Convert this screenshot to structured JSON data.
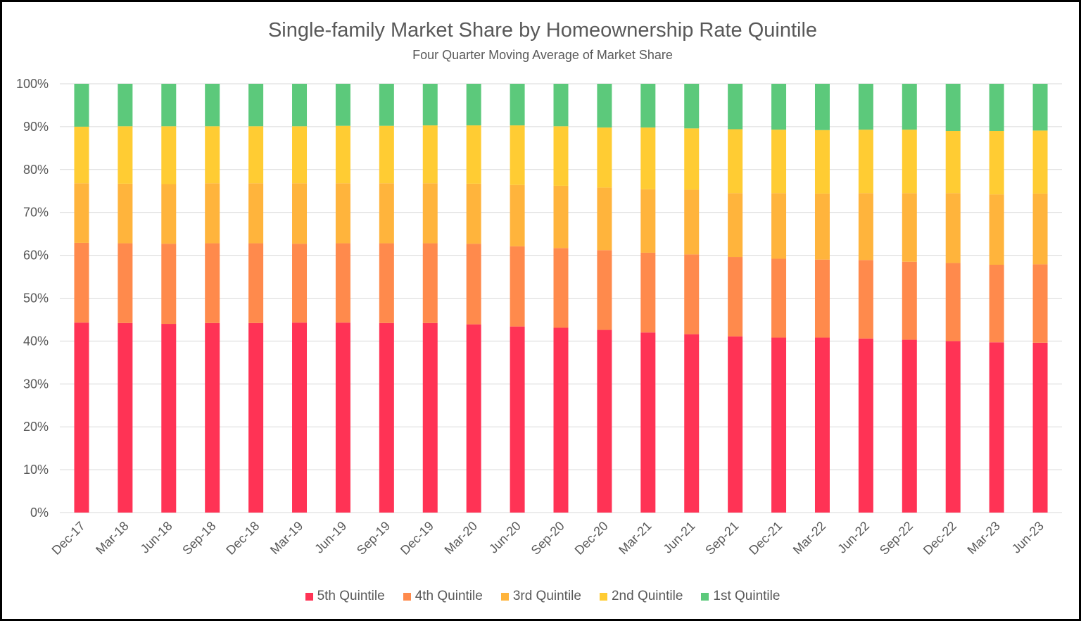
{
  "chart_data": {
    "type": "bar",
    "stacked": true,
    "title": "Single-family Market Share by Homeownership Rate Quintile",
    "subtitle": "Four Quarter Moving Average of Market Share",
    "categories": [
      "Dec-17",
      "Mar-18",
      "Jun-18",
      "Sep-18",
      "Dec-18",
      "Mar-19",
      "Jun-19",
      "Sep-19",
      "Dec-19",
      "Mar-20",
      "Jun-20",
      "Sep-20",
      "Dec-20",
      "Mar-21",
      "Jun-21",
      "Sep-21",
      "Dec-21",
      "Mar-22",
      "Jun-22",
      "Sep-22",
      "Dec-22",
      "Mar-23",
      "Jun-23"
    ],
    "yticks": [
      "0%",
      "10%",
      "20%",
      "30%",
      "40%",
      "50%",
      "60%",
      "70%",
      "80%",
      "90%",
      "100%"
    ],
    "ylim": [
      0,
      100
    ],
    "grid": true,
    "legend_position": "bottom",
    "series": [
      {
        "name": "5th Quintile",
        "color": "#ff3355",
        "values": [
          44.3,
          44.2,
          44.0,
          44.2,
          44.2,
          44.3,
          44.3,
          44.2,
          44.2,
          43.9,
          43.4,
          43.1,
          42.6,
          42.0,
          41.6,
          41.1,
          40.8,
          40.8,
          40.6,
          40.3,
          40.0,
          39.7,
          39.6
        ]
      },
      {
        "name": "4th Quintile",
        "color": "#ff8a4c",
        "values": [
          18.6,
          18.6,
          18.7,
          18.6,
          18.6,
          18.4,
          18.5,
          18.6,
          18.6,
          18.8,
          18.7,
          18.6,
          18.6,
          18.6,
          18.6,
          18.5,
          18.4,
          18.2,
          18.3,
          18.2,
          18.2,
          18.1,
          18.3
        ]
      },
      {
        "name": "3rd Quintile",
        "color": "#ffb43c",
        "values": [
          13.9,
          13.9,
          13.9,
          14.0,
          14.0,
          14.1,
          14.0,
          14.0,
          14.0,
          14.0,
          14.3,
          14.5,
          14.6,
          14.8,
          15.1,
          14.9,
          15.3,
          15.4,
          15.6,
          16.0,
          16.3,
          16.4,
          16.5
        ]
      },
      {
        "name": "2nd Quintile",
        "color": "#ffcc33",
        "values": [
          13.2,
          13.4,
          13.5,
          13.3,
          13.3,
          13.3,
          13.4,
          13.4,
          13.5,
          13.6,
          13.9,
          13.9,
          14.0,
          14.4,
          14.3,
          14.9,
          14.8,
          14.8,
          14.8,
          14.8,
          14.5,
          14.8,
          14.7
        ]
      },
      {
        "name": "1st Quintile",
        "color": "#5cc97b",
        "values": [
          10.0,
          9.9,
          9.9,
          9.9,
          9.9,
          9.9,
          9.8,
          9.8,
          9.7,
          9.7,
          9.7,
          9.9,
          10.2,
          10.2,
          10.4,
          10.6,
          10.7,
          10.8,
          10.7,
          10.7,
          11.0,
          11.0,
          10.9
        ]
      }
    ]
  }
}
